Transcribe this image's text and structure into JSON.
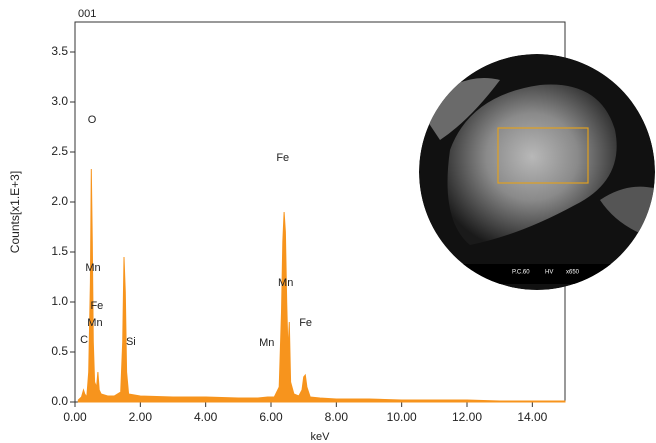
{
  "chart_data": {
    "type": "area",
    "title": "001",
    "xlabel": "keV",
    "ylabel": "Counts[x1.E+3]",
    "color": "#f7941d",
    "x": [
      0.1,
      0.2,
      0.26,
      0.3,
      0.36,
      0.42,
      0.47,
      0.5,
      0.53,
      0.56,
      0.6,
      0.66,
      0.7,
      0.74,
      0.8,
      1.0,
      1.2,
      1.4,
      1.46,
      1.5,
      1.54,
      1.58,
      1.64,
      2.0,
      3.0,
      4.0,
      5.0,
      5.6,
      5.9,
      6.1,
      6.25,
      6.32,
      6.36,
      6.4,
      6.44,
      6.48,
      6.52,
      6.56,
      6.6,
      6.7,
      6.85,
      6.95,
      7.0,
      7.05,
      7.1,
      7.2,
      7.5,
      8.0,
      9.0,
      10.0,
      11.0,
      12.0,
      13.0,
      14.0,
      15.0
    ],
    "values": [
      0.02,
      0.05,
      0.12,
      0.08,
      0.05,
      0.3,
      1.2,
      2.33,
      1.6,
      0.6,
      0.2,
      0.15,
      0.3,
      0.12,
      0.08,
      0.06,
      0.06,
      0.1,
      0.6,
      1.45,
      1.1,
      0.3,
      0.08,
      0.06,
      0.05,
      0.05,
      0.04,
      0.04,
      0.05,
      0.05,
      0.15,
      0.9,
      1.6,
      1.9,
      1.7,
      1.0,
      0.5,
      0.8,
      0.2,
      0.08,
      0.06,
      0.12,
      0.25,
      0.27,
      0.15,
      0.05,
      0.04,
      0.03,
      0.03,
      0.02,
      0.02,
      0.02,
      0.01,
      0.01,
      0.01
    ],
    "xlim": [
      0,
      15
    ],
    "ylim": [
      0,
      3.8
    ],
    "xticks": [
      {
        "value": 0,
        "label": "0.00"
      },
      {
        "value": 2,
        "label": "2.00"
      },
      {
        "value": 4,
        "label": "4.00"
      },
      {
        "value": 6,
        "label": "6.00"
      },
      {
        "value": 8,
        "label": "8.00"
      },
      {
        "value": 10,
        "label": "10.00"
      },
      {
        "value": 12,
        "label": "12.00"
      },
      {
        "value": 14,
        "label": "14.00"
      }
    ],
    "yticks": [
      {
        "value": 0,
        "label": "0.0"
      },
      0.5,
      {
        "value": 1,
        "label": "1.0"
      },
      1.5,
      {
        "value": 2,
        "label": "2.0"
      },
      2.5,
      {
        "value": 3,
        "label": "3.0"
      },
      3.5
    ],
    "annotations": [
      {
        "text": "O",
        "x": 0.52,
        "y": 2.82
      },
      {
        "text": "Mn",
        "x": 0.55,
        "y": 1.34
      },
      {
        "text": "Fe",
        "x": 0.67,
        "y": 0.96
      },
      {
        "text": "Mn",
        "x": 0.61,
        "y": 0.79
      },
      {
        "text": "C",
        "x": 0.28,
        "y": 0.62
      },
      {
        "text": "Si",
        "x": 1.71,
        "y": 0.6
      },
      {
        "text": "Fe",
        "x": 6.36,
        "y": 2.44
      },
      {
        "text": "Mn",
        "x": 6.45,
        "y": 1.19
      },
      {
        "text": "Fe",
        "x": 7.06,
        "y": 0.79
      },
      {
        "text": "Mn",
        "x": 5.87,
        "y": 0.59
      }
    ],
    "inset": {
      "labels": [
        "P.C.60",
        "HV",
        "x650"
      ]
    }
  }
}
